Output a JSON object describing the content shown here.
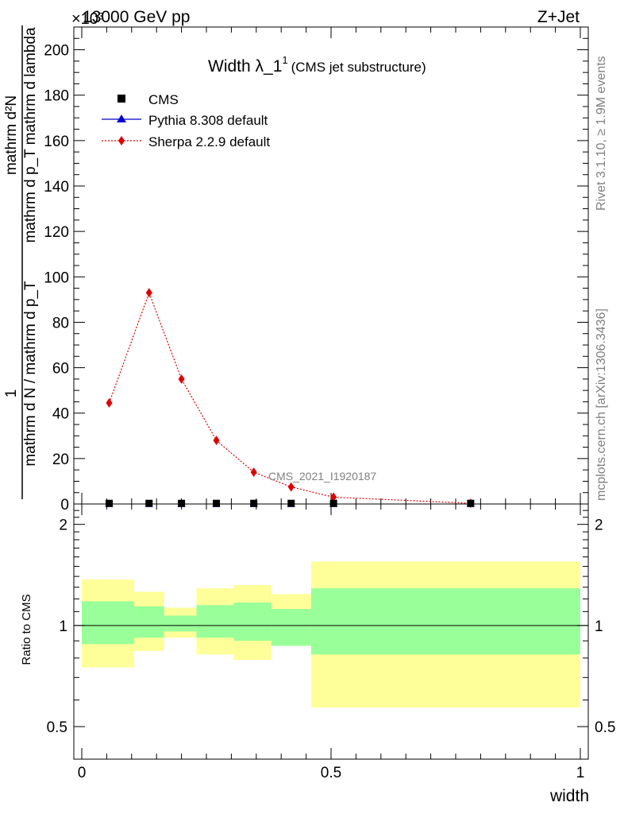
{
  "header": {
    "energy": "13000 GeV pp",
    "process": "Z+Jet",
    "exponent": "×10³"
  },
  "side_labels": {
    "rivet": "Rivet 3.1.10, ≥ 1.9M events",
    "mcplots": "mcplots.cern.ch [arXiv:1306.3436]"
  },
  "chart_data": [
    {
      "type": "line",
      "title": "Width λ_1",
      "title_sup": "1",
      "subtitle": "(CMS jet substructure)",
      "analysis_label": "CMS_2021_I1920187",
      "ylabel_numerator": "mathrm d²N",
      "ylabel_numerator_sub": "mathrm d p_T mathrm d lambda",
      "ylabel_prefix": "1",
      "ylabel_denominator": "mathrm d N / mathrm d p_T",
      "y_exponent": 1000,
      "xlim": [
        0,
        1
      ],
      "ylim": [
        0,
        210
      ],
      "yticks": [
        0,
        20,
        40,
        60,
        80,
        100,
        120,
        140,
        160,
        180,
        200
      ],
      "grid": false,
      "legend_position": "top-left",
      "series": [
        {
          "name": "CMS",
          "marker": "square",
          "color": "#000000",
          "x": [
            0.055,
            0.135,
            0.2,
            0.27,
            0.345,
            0.42,
            0.505,
            0.78
          ],
          "y": [
            0.1,
            0.1,
            0.1,
            0.1,
            0.1,
            0.1,
            0.1,
            0.1
          ]
        },
        {
          "name": "Pythia 8.308 default",
          "marker": "triangle",
          "color": "#0000cc",
          "x": [
            0.055,
            0.135,
            0.2,
            0.27,
            0.345,
            0.42,
            0.505,
            0.78
          ],
          "y": [
            0.1,
            0.1,
            0.1,
            0.1,
            0.1,
            0.1,
            0.1,
            0.1
          ]
        },
        {
          "name": "Sherpa 2.2.9 default",
          "marker": "diamond",
          "color": "#dd0000",
          "x": [
            0.055,
            0.135,
            0.2,
            0.27,
            0.345,
            0.42,
            0.505,
            0.78
          ],
          "y": [
            44.5,
            93,
            55,
            28,
            14,
            7.5,
            3,
            0.3
          ]
        }
      ]
    },
    {
      "type": "area",
      "ylabel": "Ratio to CMS",
      "xlabel": "width",
      "xlim": [
        0,
        1
      ],
      "ylim": [
        0.4,
        2.3
      ],
      "yticks": [
        0.5,
        1,
        2
      ],
      "xticks": [
        0,
        0.5,
        1
      ],
      "reference_line": 1,
      "bins": [
        {
          "x0": 0.0,
          "x1": 0.105,
          "inner": [
            0.88,
            1.18
          ],
          "outer": [
            0.75,
            1.37
          ]
        },
        {
          "x0": 0.105,
          "x1": 0.165,
          "inner": [
            0.92,
            1.14
          ],
          "outer": [
            0.84,
            1.26
          ]
        },
        {
          "x0": 0.165,
          "x1": 0.23,
          "inner": [
            0.96,
            1.07
          ],
          "outer": [
            0.92,
            1.13
          ]
        },
        {
          "x0": 0.23,
          "x1": 0.305,
          "inner": [
            0.92,
            1.15
          ],
          "outer": [
            0.82,
            1.29
          ]
        },
        {
          "x0": 0.305,
          "x1": 0.38,
          "inner": [
            0.9,
            1.17
          ],
          "outer": [
            0.79,
            1.32
          ]
        },
        {
          "x0": 0.38,
          "x1": 0.46,
          "inner": [
            0.87,
            1.12
          ],
          "outer": [
            0.87,
            1.24
          ]
        },
        {
          "x0": 0.46,
          "x1": 1.0,
          "inner": [
            0.82,
            1.29
          ],
          "outer": [
            0.57,
            1.55
          ]
        }
      ]
    }
  ]
}
